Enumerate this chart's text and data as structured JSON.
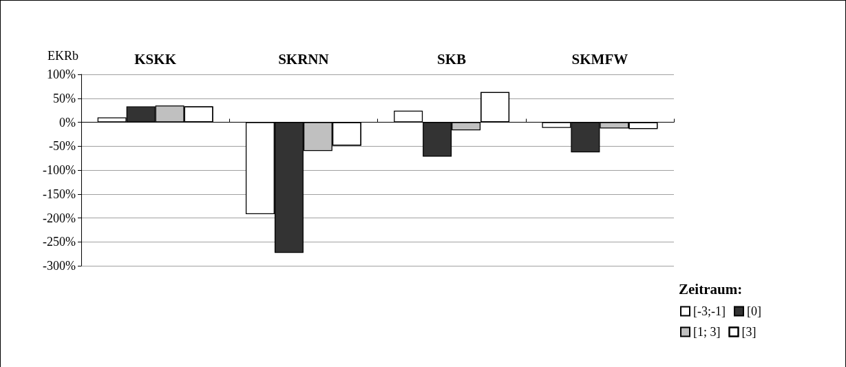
{
  "chart_data": {
    "type": "bar",
    "ylabel": "EKRb",
    "legend_title": "Zeitraum:",
    "categories": [
      "KSKK",
      "SKRNN",
      "SKB",
      "SKMFW"
    ],
    "series": [
      {
        "name": "[-3;-1]",
        "color": "#ffffff",
        "values": [
          10,
          -192,
          24,
          -12
        ]
      },
      {
        "name": "[0]",
        "color": "#333333",
        "values": [
          33,
          -273,
          -72,
          -63
        ]
      },
      {
        "name": "[1; 3]",
        "color": "#c0c0c0",
        "values": [
          35,
          -60,
          -17,
          -13
        ]
      },
      {
        "name": "[3]",
        "color": "#ffffff",
        "values": [
          33,
          -49,
          63,
          -14
        ]
      }
    ],
    "ylim": [
      -300,
      100
    ],
    "yticks": [
      {
        "value": -300,
        "label": "-300%"
      },
      {
        "value": -250,
        "label": "-250%"
      },
      {
        "value": -200,
        "label": "-200%"
      },
      {
        "value": -150,
        "label": "-150%"
      },
      {
        "value": -100,
        "label": "-100%"
      },
      {
        "value": -50,
        "label": "-50%"
      },
      {
        "value": 0,
        "label": "0%"
      },
      {
        "value": 50,
        "label": "50%"
      },
      {
        "value": 100,
        "label": "100%"
      }
    ],
    "grid": "y",
    "legend": "bottom right"
  }
}
